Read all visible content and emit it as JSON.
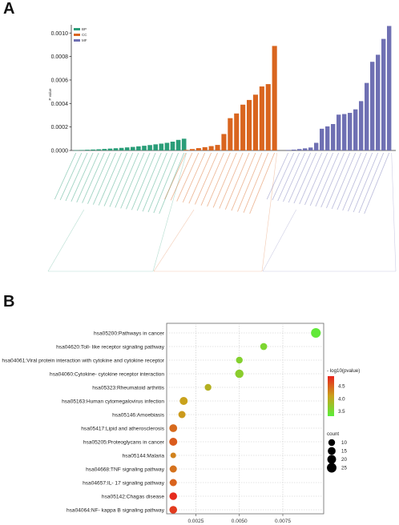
{
  "panel_a": {
    "letter": "A",
    "ylabel": "P value",
    "legend": [
      {
        "key": "BP",
        "label": "BP",
        "color": "#2a9d78"
      },
      {
        "key": "CC",
        "label": "CC",
        "color": "#d9651f"
      },
      {
        "key": "MF",
        "label": "MF",
        "color": "#6f70b3"
      }
    ]
  },
  "panel_b": {
    "letter": "B",
    "color_legend_title": "- log10(pvalue)",
    "size_legend_title": "count"
  },
  "chart_data": [
    {
      "type": "bar",
      "title": "",
      "xlabel": "",
      "ylabel": "P value",
      "ylim": [
        0,
        0.00107
      ],
      "yticks": [
        {
          "value": 0,
          "label": "0.0000"
        },
        {
          "value": 0.0002,
          "label": "0.0002"
        },
        {
          "value": 0.0004,
          "label": "0.0004"
        },
        {
          "value": 0.0006,
          "label": "0.0006"
        },
        {
          "value": 0.0008,
          "label": "0.0008"
        },
        {
          "value": 0.001,
          "label": "0.0010"
        }
      ],
      "legend_position": "top-left",
      "grid": false,
      "series": [
        {
          "name": "BP",
          "color": "#2a9d78",
          "values": [
            2e-06,
            4e-06,
            6e-06,
            8e-06,
            1e-05,
            1.3e-05,
            1.6e-05,
            1.9e-05,
            2.2e-05,
            2.6e-05,
            3e-05,
            3.5e-05,
            4e-05,
            4.6e-05,
            5.2e-05,
            5.8e-05,
            6.5e-05,
            7.5e-05,
            9e-05,
            0.0001
          ]
        },
        {
          "name": "CC",
          "color": "#d9651f",
          "values": [
            5e-06,
            1.2e-05,
            2e-05,
            2.8e-05,
            3.7e-05,
            4.7e-05,
            0.00014,
            0.000275,
            0.000315,
            0.00039,
            0.00043,
            0.000475,
            0.000545,
            0.000565,
            0.00089
          ]
        },
        {
          "name": "MF",
          "color": "#6f70b3",
          "values": [
            4e-06,
            7e-06,
            1.2e-05,
            1.8e-05,
            2.5e-05,
            6.5e-05,
            0.000185,
            0.000205,
            0.000225,
            0.000305,
            0.00031,
            0.00032,
            0.00035,
            0.00042,
            0.000575,
            0.000755,
            0.000815,
            0.00095,
            0.00106
          ]
        }
      ]
    },
    {
      "type": "scatter",
      "title": "",
      "xlabel": "",
      "ylabel": "",
      "xlim": [
        0.00082,
        0.00985
      ],
      "xticks": [
        {
          "value": 0.0025,
          "label": "0.0025"
        },
        {
          "value": 0.005,
          "label": "0.0050"
        },
        {
          "value": 0.0075,
          "label": "0.0075"
        }
      ],
      "grid": true,
      "color_scale": {
        "title": "- log10(pvalue)",
        "min": 3.3,
        "max": 4.9,
        "ticks": [
          3.5,
          4.0,
          4.5
        ],
        "low_color": "#5aee3a",
        "high_color": "#e8231e"
      },
      "size_scale": {
        "title": "count",
        "values": [
          10,
          15,
          20,
          25
        ]
      },
      "categories": [
        "hsa05200:Pathways in cancer",
        "hsa04620:Toll- like receptor signaling pathway",
        "hsa04061:Viral protein interaction with cytokine and cytokine receptor",
        "hsa04060:Cytokine- cytokine receptor interaction",
        "hsa05323:Rheumatoid arthritis",
        "hsa05163:Human cytomegalovirus infection",
        "hsa05146:Amoebiasis",
        "hsa05417:Lipid and atherosclerosis",
        "hsa05205:Proteoglycans in cancer",
        "hsa05144:Malaria",
        "hsa04668:TNF signaling pathway",
        "hsa04657:IL- 17 signaling pathway",
        "hsa05142:Chagas disease",
        "hsa04064:NF- kappa B signaling pathway"
      ],
      "points": [
        {
          "x": 0.0094,
          "count": 26,
          "neglog10p": 3.35
        },
        {
          "x": 0.0064,
          "count": 11,
          "neglog10p": 3.55
        },
        {
          "x": 0.005,
          "count": 10,
          "neglog10p": 3.6
        },
        {
          "x": 0.005,
          "count": 18,
          "neglog10p": 3.65
        },
        {
          "x": 0.0032,
          "count": 10,
          "neglog10p": 3.95
        },
        {
          "x": 0.0018,
          "count": 16,
          "neglog10p": 4.1
        },
        {
          "x": 0.0017,
          "count": 12,
          "neglog10p": 4.15
        },
        {
          "x": 0.0012,
          "count": 15,
          "neglog10p": 4.45
        },
        {
          "x": 0.0012,
          "count": 16,
          "neglog10p": 4.55
        },
        {
          "x": 0.0012,
          "count": 6,
          "neglog10p": 4.3
        },
        {
          "x": 0.0012,
          "count": 12,
          "neglog10p": 4.4
        },
        {
          "x": 0.0012,
          "count": 12,
          "neglog10p": 4.5
        },
        {
          "x": 0.0012,
          "count": 14,
          "neglog10p": 4.85
        },
        {
          "x": 0.0012,
          "count": 14,
          "neglog10p": 4.75
        }
      ]
    }
  ]
}
